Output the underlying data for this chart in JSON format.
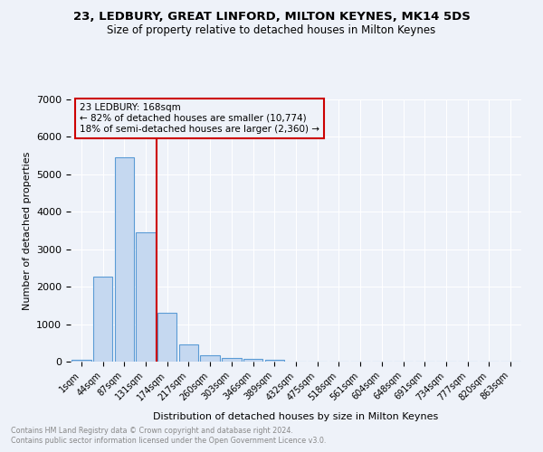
{
  "title1": "23, LEDBURY, GREAT LINFORD, MILTON KEYNES, MK14 5DS",
  "title2": "Size of property relative to detached houses in Milton Keynes",
  "xlabel": "Distribution of detached houses by size in Milton Keynes",
  "ylabel": "Number of detached properties",
  "footnote1": "Contains HM Land Registry data © Crown copyright and database right 2024.",
  "footnote2": "Contains public sector information licensed under the Open Government Licence v3.0.",
  "bar_labels": [
    "1sqm",
    "44sqm",
    "87sqm",
    "131sqm",
    "174sqm",
    "217sqm",
    "260sqm",
    "303sqm",
    "346sqm",
    "389sqm",
    "432sqm",
    "475sqm",
    "518sqm",
    "561sqm",
    "604sqm",
    "648sqm",
    "691sqm",
    "734sqm",
    "777sqm",
    "820sqm",
    "863sqm"
  ],
  "bar_values": [
    60,
    2270,
    5450,
    3450,
    1310,
    450,
    175,
    100,
    70,
    45,
    0,
    0,
    0,
    0,
    0,
    0,
    0,
    0,
    0,
    0,
    0
  ],
  "bar_color": "#c5d8f0",
  "bar_edge_color": "#5b9bd5",
  "ylim": [
    0,
    7000
  ],
  "vline_color": "#cc0000",
  "annotation_title": "23 LEDBURY: 168sqm",
  "annotation_line1": "← 82% of detached houses are smaller (10,774)",
  "annotation_line2": "18% of semi-detached houses are larger (2,360) →",
  "annotation_box_color": "#cc0000",
  "background_color": "#eef2f9",
  "grid_color": "#ffffff"
}
